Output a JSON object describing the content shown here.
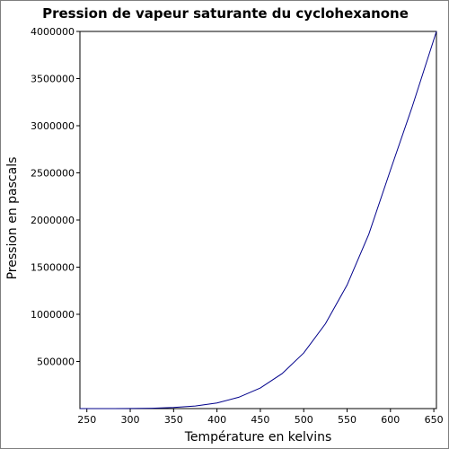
{
  "chart_data": {
    "type": "line",
    "title": "Pression de vapeur saturante du cyclohexanone",
    "xlabel": "Température en kelvins",
    "ylabel": "Pression en pascals",
    "xlim": [
      242,
      653
    ],
    "ylim": [
      0,
      4000000
    ],
    "x_ticks": [
      250,
      300,
      350,
      400,
      450,
      500,
      550,
      600,
      650
    ],
    "y_ticks": [
      500000,
      1000000,
      1500000,
      2000000,
      2500000,
      3000000,
      3500000,
      4000000
    ],
    "grid": false,
    "line_color": "#00008b",
    "series": [
      {
        "x": [
          242,
          250,
          275,
          300,
          325,
          350,
          375,
          400,
          425,
          450,
          475,
          500,
          525,
          550,
          575,
          600,
          625,
          653
        ],
        "y": [
          13,
          30,
          210,
          1000,
          3700,
          11000,
          27500,
          60000,
          120000,
          218000,
          370000,
          590000,
          900000,
          1310000,
          1850000,
          2530000,
          3200000,
          4000000
        ]
      }
    ]
  }
}
